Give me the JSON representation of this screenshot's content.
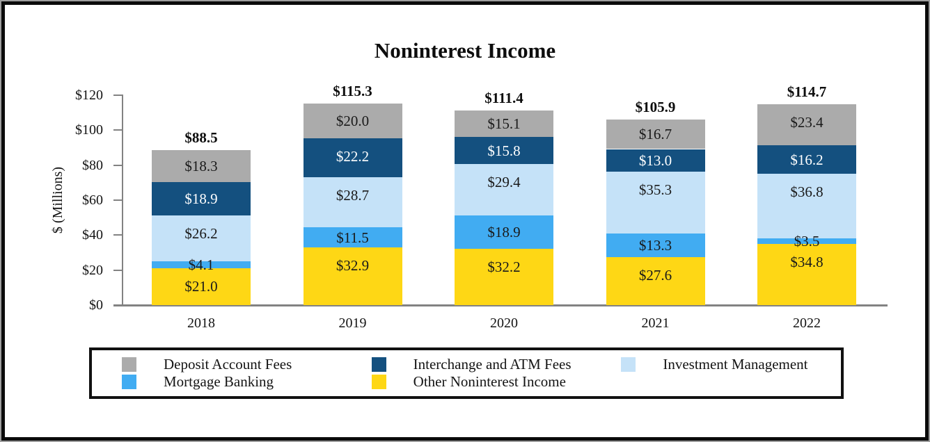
{
  "title": "Noninterest Income",
  "chart_data": {
    "type": "bar",
    "stacked": true,
    "title": "Noninterest Income",
    "ylabel": "$ (Millions)",
    "ylim": [
      0,
      120
    ],
    "y_ticks": [
      0,
      20,
      40,
      60,
      80,
      100,
      120
    ],
    "y_tick_labels": [
      "$0",
      "$20",
      "$40",
      "$60",
      "$80",
      "$100",
      "$120"
    ],
    "grid": false,
    "legend_position": "bottom",
    "categories": [
      "2018",
      "2019",
      "2020",
      "2021",
      "2022"
    ],
    "totals": [
      88.5,
      115.3,
      111.4,
      105.9,
      114.7
    ],
    "total_labels": [
      "$88.5",
      "$115.3",
      "$111.4",
      "$105.9",
      "$114.7"
    ],
    "series": [
      {
        "name": "Other Noninterest Income",
        "color": "#FED715",
        "label_color": "#1A1A1A",
        "values": [
          21.0,
          32.9,
          32.2,
          27.6,
          34.8
        ]
      },
      {
        "name": "Mortgage Banking",
        "color": "#41ACF2",
        "label_color": "#1A1A1A",
        "values": [
          4.1,
          11.5,
          18.9,
          13.3,
          3.5
        ]
      },
      {
        "name": "Investment Management",
        "color": "#C5E2F8",
        "label_color": "#1A1A1A",
        "values": [
          26.2,
          28.7,
          29.4,
          35.3,
          36.8
        ]
      },
      {
        "name": "Interchange and ATM Fees",
        "color": "#14507F",
        "label_color": "#FFFFFF",
        "values": [
          18.9,
          22.2,
          15.8,
          13.0,
          16.2
        ]
      },
      {
        "name": "Deposit Account Fees",
        "color": "#ABABAB",
        "label_color": "#1A1A1A",
        "values": [
          18.3,
          20.0,
          15.1,
          16.7,
          23.4
        ]
      }
    ],
    "legend_items": [
      {
        "label": "Deposit Account Fees",
        "color": "#ABABAB"
      },
      {
        "label": "Interchange and ATM Fees",
        "color": "#14507F"
      },
      {
        "label": "Investment Management",
        "color": "#C5E2F8"
      },
      {
        "label": "Mortgage Banking",
        "color": "#41ACF2"
      },
      {
        "label": "Other Noninterest Income",
        "color": "#FED715"
      }
    ]
  }
}
